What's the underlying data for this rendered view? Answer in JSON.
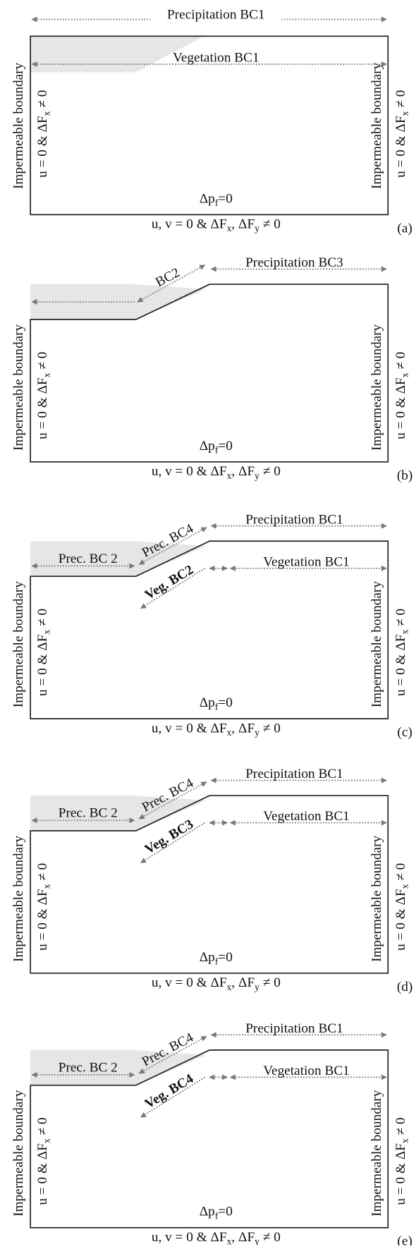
{
  "panels": [
    {
      "letter": "(a)",
      "precipitation": "Precipitation BC1",
      "vegetation": "Vegetation BC1",
      "left_boundary": "Impermeable boundary",
      "left_condition": [
        "u = 0 & ΔF",
        "x",
        " ≠ 0"
      ],
      "right_boundary": "Impermeable boundary",
      "right_condition": [
        "u = 0 & ΔF",
        "x",
        " ≠ 0"
      ],
      "pressure": [
        "Δp",
        "f",
        "=0"
      ],
      "bottom_condition": [
        "u, v = 0 & ΔF",
        "x",
        ", ΔF",
        "y",
        " ≠ 0"
      ]
    },
    {
      "letter": "(b)",
      "precipitation": "Precipitation BC3",
      "slope_label": "BC2",
      "left_boundary": "Impermeable boundary",
      "left_condition": [
        "u = 0 & ΔF",
        "x",
        " ≠ 0"
      ],
      "right_boundary": "Impermeable boundary",
      "right_condition": [
        "u = 0 & ΔF",
        "x",
        " ≠ 0"
      ],
      "pressure": [
        "Δp",
        "f",
        "=0"
      ],
      "bottom_condition": [
        "u, v = 0 & ΔF",
        "x",
        ", ΔF",
        "y",
        " ≠ 0"
      ]
    },
    {
      "letter": "(c)",
      "precipitation": "Precipitation BC1",
      "slope_label": "Prec. BC4",
      "left_label": "Prec. BC 2",
      "vegetation": "Vegetation BC1",
      "veg_slope": "Veg. BC2",
      "left_boundary": "Impermeable boundary",
      "left_condition": [
        "u = 0 & ΔF",
        "x",
        " ≠ 0"
      ],
      "right_boundary": "Impermeable boundary",
      "right_condition": [
        "u = 0 & ΔF",
        "x",
        " ≠ 0"
      ],
      "pressure": [
        "Δp",
        "f",
        "=0"
      ],
      "bottom_condition": [
        "u, v = 0 & ΔF",
        "x",
        ", ΔF",
        "y",
        " ≠ 0"
      ]
    },
    {
      "letter": "(d)",
      "precipitation": "Precipitation BC1",
      "slope_label": "Prec. BC4",
      "left_label": "Prec. BC 2",
      "vegetation": "Vegetation BC1",
      "veg_slope": "Veg. BC3",
      "left_boundary": "Impermeable boundary",
      "left_condition": [
        "u = 0 & ΔF",
        "x",
        " ≠ 0"
      ],
      "right_boundary": "Impermeable boundary",
      "right_condition": [
        "u = 0 & ΔF",
        "x",
        " ≠ 0"
      ],
      "pressure": [
        "Δp",
        "f",
        "=0"
      ],
      "bottom_condition": [
        "u, v = 0 & ΔF",
        "x",
        ", ΔF",
        "y",
        " ≠ 0"
      ]
    },
    {
      "letter": "(e)",
      "precipitation": "Precipitation BC1",
      "slope_label": "Prec. BC4",
      "left_label": "Prec. BC 2",
      "vegetation": "Vegetation BC1",
      "veg_slope": "Veg. BC4",
      "left_boundary": "Impermeable boundary",
      "left_condition": [
        "u = 0 & ΔF",
        "x",
        " ≠ 0"
      ],
      "right_boundary": "Impermeable boundary",
      "right_condition": [
        "u = 0 & ΔF",
        "x",
        " ≠ 0"
      ],
      "pressure": [
        "Δp",
        "f",
        "=0"
      ],
      "bottom_condition": [
        "u, v = 0 & ΔF",
        "x",
        ", ΔF",
        "y",
        " ≠ 0"
      ]
    }
  ]
}
